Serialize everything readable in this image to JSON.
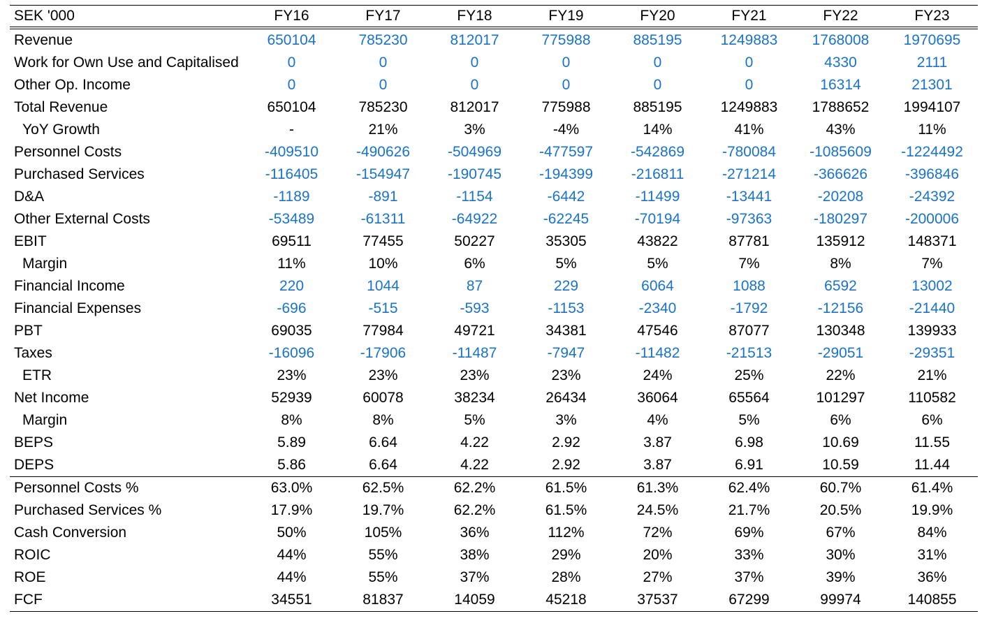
{
  "table": {
    "corner_label": "SEK '000",
    "years": [
      "FY16",
      "FY17",
      "FY18",
      "FY19",
      "FY20",
      "FY21",
      "FY22",
      "FY23"
    ],
    "rows": [
      {
        "label": "Revenue",
        "indent": false,
        "input": true,
        "values": [
          "650104",
          "785230",
          "812017",
          "775988",
          "885195",
          "1249883",
          "1768008",
          "1970695"
        ]
      },
      {
        "label": "Work for Own Use and Capitalised",
        "indent": false,
        "input": true,
        "values": [
          "0",
          "0",
          "0",
          "0",
          "0",
          "0",
          "4330",
          "2111"
        ]
      },
      {
        "label": "Other Op. Income",
        "indent": false,
        "input": true,
        "values": [
          "0",
          "0",
          "0",
          "0",
          "0",
          "0",
          "16314",
          "21301"
        ]
      },
      {
        "label": "Total Revenue",
        "indent": false,
        "input": false,
        "values": [
          "650104",
          "785230",
          "812017",
          "775988",
          "885195",
          "1249883",
          "1788652",
          "1994107"
        ]
      },
      {
        "label": "YoY Growth",
        "indent": true,
        "input": false,
        "values": [
          "-",
          "21%",
          "3%",
          "-4%",
          "14%",
          "41%",
          "43%",
          "11%"
        ]
      },
      {
        "label": "Personnel Costs",
        "indent": false,
        "input": true,
        "values": [
          "-409510",
          "-490626",
          "-504969",
          "-477597",
          "-542869",
          "-780084",
          "-1085609",
          "-1224492"
        ]
      },
      {
        "label": "Purchased Services",
        "indent": false,
        "input": true,
        "values": [
          "-116405",
          "-154947",
          "-190745",
          "-194399",
          "-216811",
          "-271214",
          "-366626",
          "-396846"
        ]
      },
      {
        "label": "D&A",
        "indent": false,
        "input": true,
        "values": [
          "-1189",
          "-891",
          "-1154",
          "-6442",
          "-11499",
          "-13441",
          "-20208",
          "-24392"
        ]
      },
      {
        "label": "Other External Costs",
        "indent": false,
        "input": true,
        "values": [
          "-53489",
          "-61311",
          "-64922",
          "-62245",
          "-70194",
          "-97363",
          "-180297",
          "-200006"
        ]
      },
      {
        "label": "EBIT",
        "indent": false,
        "input": false,
        "values": [
          "69511",
          "77455",
          "50227",
          "35305",
          "43822",
          "87781",
          "135912",
          "148371"
        ]
      },
      {
        "label": "Margin",
        "indent": true,
        "input": false,
        "values": [
          "11%",
          "10%",
          "6%",
          "5%",
          "5%",
          "7%",
          "8%",
          "7%"
        ]
      },
      {
        "label": "Financial Income",
        "indent": false,
        "input": true,
        "values": [
          "220",
          "1044",
          "87",
          "229",
          "6064",
          "1088",
          "6592",
          "13002"
        ]
      },
      {
        "label": "Financial Expenses",
        "indent": false,
        "input": true,
        "values": [
          "-696",
          "-515",
          "-593",
          "-1153",
          "-2340",
          "-1792",
          "-12156",
          "-21440"
        ]
      },
      {
        "label": "PBT",
        "indent": false,
        "input": false,
        "values": [
          "69035",
          "77984",
          "49721",
          "34381",
          "47546",
          "87077",
          "130348",
          "139933"
        ]
      },
      {
        "label": "Taxes",
        "indent": false,
        "input": true,
        "values": [
          "-16096",
          "-17906",
          "-11487",
          "-7947",
          "-11482",
          "-21513",
          "-29051",
          "-29351"
        ]
      },
      {
        "label": "ETR",
        "indent": true,
        "input": false,
        "values": [
          "23%",
          "23%",
          "23%",
          "23%",
          "24%",
          "25%",
          "22%",
          "21%"
        ]
      },
      {
        "label": "Net Income",
        "indent": false,
        "input": false,
        "values": [
          "52939",
          "60078",
          "38234",
          "26434",
          "36064",
          "65564",
          "101297",
          "110582"
        ]
      },
      {
        "label": "Margin",
        "indent": true,
        "input": false,
        "values": [
          "8%",
          "8%",
          "5%",
          "3%",
          "4%",
          "5%",
          "6%",
          "6%"
        ]
      },
      {
        "label": "BEPS",
        "indent": false,
        "input": false,
        "values": [
          "5.89",
          "6.64",
          "4.22",
          "2.92",
          "3.87",
          "6.98",
          "10.69",
          "11.55"
        ]
      },
      {
        "label": "DEPS",
        "indent": false,
        "input": false,
        "values": [
          "5.86",
          "6.64",
          "4.22",
          "2.92",
          "3.87",
          "6.91",
          "10.59",
          "11.44"
        ]
      },
      {
        "label": "Personnel Costs %",
        "indent": false,
        "input": false,
        "section_start": true,
        "values": [
          "63.0%",
          "62.5%",
          "62.2%",
          "61.5%",
          "61.3%",
          "62.4%",
          "60.7%",
          "61.4%"
        ]
      },
      {
        "label": "Purchased Services %",
        "indent": false,
        "input": false,
        "values": [
          "17.9%",
          "19.7%",
          "62.2%",
          "61.5%",
          "24.5%",
          "21.7%",
          "20.5%",
          "19.9%"
        ]
      },
      {
        "label": "Cash Conversion",
        "indent": false,
        "input": false,
        "values": [
          "50%",
          "105%",
          "36%",
          "112%",
          "72%",
          "69%",
          "67%",
          "84%"
        ]
      },
      {
        "label": "ROIC",
        "indent": false,
        "input": false,
        "values": [
          "44%",
          "55%",
          "38%",
          "29%",
          "20%",
          "33%",
          "30%",
          "31%"
        ]
      },
      {
        "label": "ROE",
        "indent": false,
        "input": false,
        "values": [
          "44%",
          "55%",
          "37%",
          "28%",
          "27%",
          "37%",
          "39%",
          "36%"
        ]
      },
      {
        "label": "FCF",
        "indent": false,
        "input": false,
        "values": [
          "34551",
          "81837",
          "14059",
          "45218",
          "37537",
          "67299",
          "99974",
          "140855"
        ]
      }
    ]
  },
  "colors": {
    "input_value": "#1a73c8",
    "calculated_value": "#000000",
    "rule": "#000000"
  }
}
